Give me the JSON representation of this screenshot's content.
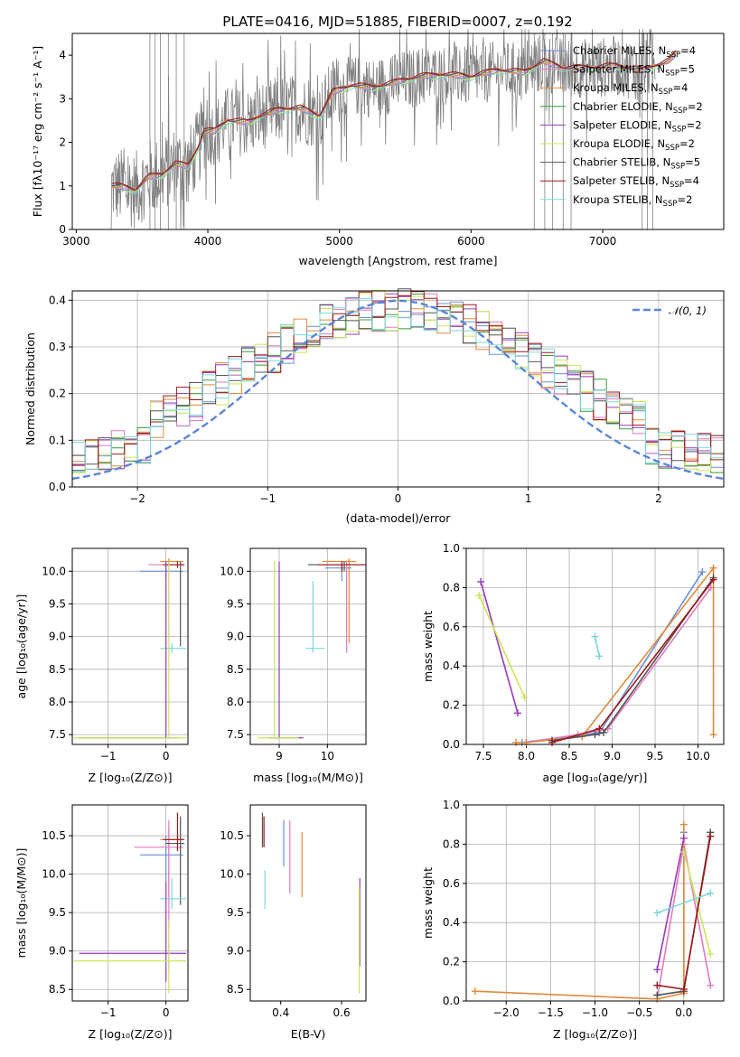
{
  "title": "PLATE=0416, MJD=51885, FIBERID=0007, z=0.192",
  "colors": {
    "Chabrier MILES": "#6a8fd8",
    "Salpeter MILES": "#e07bbf",
    "Kroupa MILES": "#e08a3c",
    "Chabrier ELODIE": "#3a9a3a",
    "Salpeter ELODIE": "#9a3ab8",
    "Kroupa ELODIE": "#c8e65a",
    "Chabrier STELIB": "#555555",
    "Salpeter STELIB": "#a01818",
    "Kroupa STELIB": "#7ad8dc",
    "data": "#808080",
    "normal": "#5b86d6"
  },
  "models": [
    {
      "key": "Chabrier MILES",
      "base": "Chabrier MILES, N",
      "sub": "SSP",
      "eq": "=4"
    },
    {
      "key": "Salpeter MILES",
      "base": "Salpeter MILES, N",
      "sub": "SSP",
      "eq": "=5"
    },
    {
      "key": "Kroupa MILES",
      "base": "Kroupa MILES, N",
      "sub": "SSP",
      "eq": "=4"
    },
    {
      "key": "Chabrier ELODIE",
      "base": "Chabrier ELODIE, N",
      "sub": "SSP",
      "eq": "=2"
    },
    {
      "key": "Salpeter ELODIE",
      "base": "Salpeter ELODIE, N",
      "sub": "SSP",
      "eq": "=2"
    },
    {
      "key": "Kroupa ELODIE",
      "base": "Kroupa ELODIE, N",
      "sub": "SSP",
      "eq": "=2"
    },
    {
      "key": "Chabrier STELIB",
      "base": "Chabrier STELIB, N",
      "sub": "SSP",
      "eq": "=5"
    },
    {
      "key": "Salpeter STELIB",
      "base": "Salpeter STELIB, N",
      "sub": "SSP",
      "eq": "=4"
    },
    {
      "key": "Kroupa STELIB",
      "base": "Kroupa STELIB, N",
      "sub": "SSP",
      "eq": "=2"
    }
  ],
  "chart_data": [
    {
      "id": "spectrum",
      "type": "line",
      "xlabel": "wavelength [Angstrom, rest frame]",
      "ylabel": "Flux [fλ10⁻¹⁷ erg cm⁻² s⁻¹ A⁻¹]",
      "xlim": [
        2970,
        7920
      ],
      "ylim": [
        0,
        4.5
      ],
      "xticks": [
        3000,
        4000,
        5000,
        6000,
        7000
      ],
      "yticks": [
        0,
        1,
        2,
        3,
        4
      ],
      "model_continuum": [
        [
          3270,
          1.0
        ],
        [
          3350,
          0.97
        ],
        [
          3450,
          0.9
        ],
        [
          3550,
          1.2
        ],
        [
          3650,
          1.25
        ],
        [
          3750,
          1.5
        ],
        [
          3850,
          1.45
        ],
        [
          3930,
          1.9
        ],
        [
          3970,
          2.25
        ],
        [
          4050,
          2.25
        ],
        [
          4150,
          2.5
        ],
        [
          4300,
          2.45
        ],
        [
          4400,
          2.6
        ],
        [
          4550,
          2.75
        ],
        [
          4700,
          2.78
        ],
        [
          4850,
          2.6
        ],
        [
          4950,
          3.15
        ],
        [
          5100,
          3.3
        ],
        [
          5250,
          3.25
        ],
        [
          5400,
          3.35
        ],
        [
          5600,
          3.5
        ],
        [
          5800,
          3.55
        ],
        [
          6000,
          3.5
        ],
        [
          6200,
          3.65
        ],
        [
          6400,
          3.6
        ],
        [
          6550,
          3.85
        ],
        [
          6700,
          3.7
        ],
        [
          6900,
          3.7
        ],
        [
          7100,
          3.75
        ],
        [
          7300,
          3.65
        ],
        [
          7500,
          3.85
        ],
        [
          7560,
          4.05
        ]
      ],
      "data_range": [
        3230,
        7400
      ]
    },
    {
      "id": "residuals",
      "type": "line",
      "xlabel": "(data-model)/error",
      "ylabel": "Normed distribution",
      "xlim": [
        -2.5,
        2.5
      ],
      "ylim": [
        0,
        0.42
      ],
      "xticks": [
        -2,
        -1,
        0,
        1,
        2
      ],
      "yticks": [
        0.0,
        0.1,
        0.2,
        0.3,
        0.4
      ],
      "legend": "𝒩(0, 1)",
      "normal": {
        "mu": 0,
        "sigma": 1
      }
    },
    {
      "id": "age_vs_Z",
      "type": "scatter",
      "xlabel": "Z [log₁₀(Z/Z⊙)]",
      "ylabel": "age  [log₁₀(age/yr)]",
      "xlim": [
        -1.62,
        0.38
      ],
      "ylim": [
        7.35,
        10.35
      ],
      "xticks": [
        -1,
        0
      ],
      "yticks": [
        7.5,
        8.0,
        8.5,
        9.0,
        9.5,
        10.0
      ]
    },
    {
      "id": "age_vs_mass",
      "type": "scatter",
      "xlabel": "mass [log₁₀(M/M⊙)]",
      "ylabel": "",
      "xlim": [
        8.4,
        10.8
      ],
      "ylim": [
        7.35,
        10.35
      ],
      "xticks": [
        9,
        10
      ],
      "yticks": [
        7.5,
        8.0,
        8.5,
        9.0,
        9.5,
        10.0
      ]
    },
    {
      "id": "weight_vs_age",
      "type": "line",
      "xlabel": "age  [log₁₀(age/yr)]",
      "ylabel": "mass weight",
      "xlim": [
        7.3,
        10.3
      ],
      "ylim": [
        0.0,
        1.0
      ],
      "xticks": [
        7.5,
        8.0,
        8.5,
        9.0,
        9.5,
        10.0
      ],
      "yticks": [
        0.0,
        0.2,
        0.4,
        0.6,
        0.8,
        1.0
      ],
      "series": [
        {
          "model": "Chabrier MILES",
          "x": [
            7.95,
            8.85,
            10.05
          ],
          "y": [
            0.01,
            0.06,
            0.88
          ]
        },
        {
          "model": "Salpeter MILES",
          "x": [
            8.0,
            8.6,
            8.95,
            10.15
          ],
          "y": [
            0.01,
            0.05,
            0.08,
            0.8
          ]
        },
        {
          "model": "Kroupa MILES",
          "x": [
            7.88,
            8.0,
            8.65,
            10.18,
            10.18
          ],
          "y": [
            0.01,
            0.01,
            0.04,
            0.9,
            0.05
          ]
        },
        {
          "model": "Salpeter ELODIE",
          "x": [
            7.47,
            7.9
          ],
          "y": [
            0.83,
            0.16
          ]
        },
        {
          "model": "Kroupa ELODIE",
          "x": [
            7.45,
            7.98
          ],
          "y": [
            0.76,
            0.24
          ]
        },
        {
          "model": "Chabrier STELIB",
          "x": [
            8.3,
            8.8,
            8.9,
            10.18
          ],
          "y": [
            0.02,
            0.05,
            0.06,
            0.85
          ]
        },
        {
          "model": "Salpeter STELIB",
          "x": [
            8.3,
            8.85,
            10.18
          ],
          "y": [
            0.01,
            0.08,
            0.84
          ]
        },
        {
          "model": "Kroupa STELIB",
          "x": [
            8.8,
            8.85
          ],
          "y": [
            0.55,
            0.45
          ]
        }
      ]
    },
    {
      "id": "mass_vs_Z",
      "type": "scatter",
      "xlabel": "Z [log₁₀(Z/Z⊙)]",
      "ylabel": "mass [log₁₀(M/M⊙)]",
      "xlim": [
        -1.62,
        0.38
      ],
      "ylim": [
        8.35,
        10.9
      ],
      "xticks": [
        -1,
        0
      ],
      "yticks": [
        8.5,
        9.0,
        9.5,
        10.0,
        10.5
      ]
    },
    {
      "id": "mass_vs_EBV",
      "type": "scatter",
      "xlabel": "E(B-V)",
      "ylabel": "",
      "xlim": [
        0.3,
        0.68
      ],
      "ylim": [
        8.35,
        10.9
      ],
      "xticks": [
        0.4,
        0.6
      ],
      "yticks": [
        8.5,
        9.0,
        9.5,
        10.0,
        10.5
      ]
    },
    {
      "id": "weight_vs_Z",
      "type": "line",
      "xlabel": "Z [log₁₀(Z/Z⊙)]",
      "ylabel": "mass weight",
      "xlim": [
        -2.45,
        0.45
      ],
      "ylim": [
        0.0,
        1.0
      ],
      "xticks": [
        -2.0,
        -1.5,
        -1.0,
        -0.5,
        0.0
      ],
      "yticks": [
        0.0,
        0.2,
        0.4,
        0.6,
        0.8,
        1.0
      ],
      "series": [
        {
          "model": "Chabrier MILES",
          "x": [
            -0.3,
            0.0,
            0.0
          ],
          "y": [
            0.03,
            0.05,
            0.86
          ]
        },
        {
          "model": "Salpeter MILES",
          "x": [
            -0.3,
            0.0,
            0.3
          ],
          "y": [
            0.01,
            0.8,
            0.08
          ]
        },
        {
          "model": "Kroupa MILES",
          "x": [
            -2.35,
            -0.3,
            0.0,
            0.0
          ],
          "y": [
            0.05,
            0.01,
            0.04,
            0.9
          ]
        },
        {
          "model": "Salpeter ELODIE",
          "x": [
            -0.3,
            0.0
          ],
          "y": [
            0.16,
            0.83
          ]
        },
        {
          "model": "Kroupa ELODIE",
          "x": [
            0.0,
            0.3
          ],
          "y": [
            0.76,
            0.24
          ]
        },
        {
          "model": "Chabrier STELIB",
          "x": [
            -0.3,
            0.0,
            0.3
          ],
          "y": [
            0.03,
            0.05,
            0.86
          ]
        },
        {
          "model": "Salpeter STELIB",
          "x": [
            -0.3,
            0.0,
            0.3
          ],
          "y": [
            0.08,
            0.06,
            0.84
          ]
        },
        {
          "model": "Kroupa STELIB",
          "x": [
            -0.3,
            0.3
          ],
          "y": [
            0.45,
            0.55
          ]
        }
      ]
    }
  ]
}
